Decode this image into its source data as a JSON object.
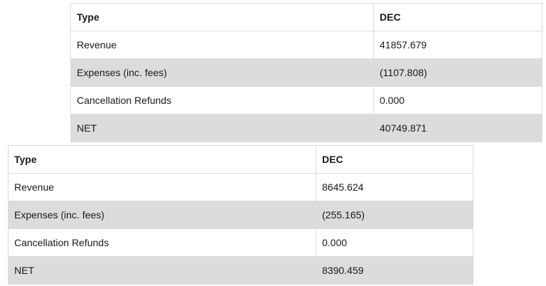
{
  "tables": [
    {
      "headers": [
        "Type",
        "DEC"
      ],
      "rows": [
        [
          "Revenue",
          "41857.679"
        ],
        [
          "Expenses (inc. fees)",
          "(1107.808)"
        ],
        [
          "Cancellation Refunds",
          "0.000"
        ],
        [
          "NET",
          "40749.871"
        ]
      ]
    },
    {
      "headers": [
        "Type",
        "DEC"
      ],
      "rows": [
        [
          "Revenue",
          "8645.624"
        ],
        [
          "Expenses (inc. fees)",
          "(255.165)"
        ],
        [
          "Cancellation Refunds",
          "0.000"
        ],
        [
          "NET",
          "8390.459"
        ]
      ]
    }
  ]
}
